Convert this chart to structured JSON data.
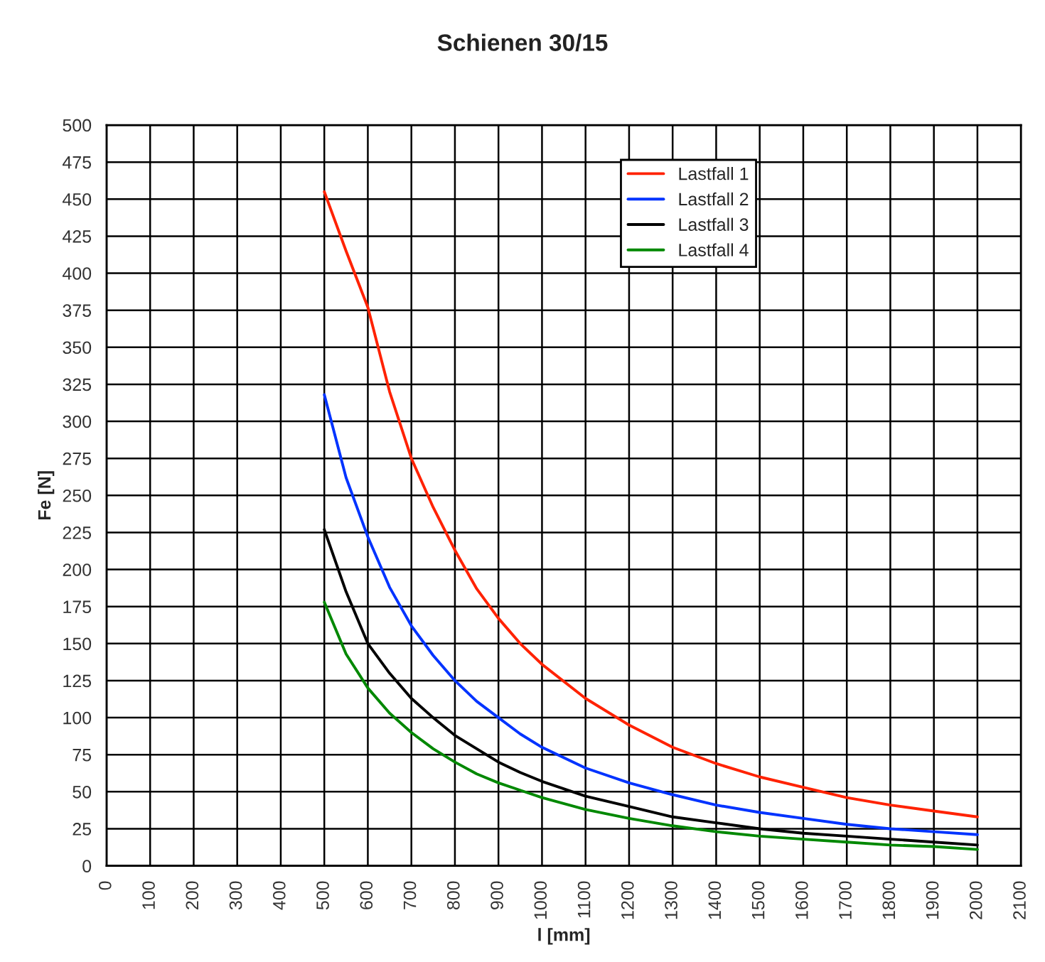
{
  "chart_data": {
    "type": "line",
    "title": "Schienen 30/15",
    "xlabel": "l [mm]",
    "ylabel": "Fe [N]",
    "x": [
      500,
      550,
      600,
      650,
      700,
      750,
      800,
      850,
      900,
      950,
      1000,
      1100,
      1200,
      1300,
      1400,
      1500,
      1600,
      1700,
      1800,
      1900,
      2000
    ],
    "series": [
      {
        "name": "Lastfall 1",
        "color": "#ff2200",
        "values": [
          455,
          415,
          377,
          320,
          275,
          242,
          213,
          187,
          167,
          150,
          136,
          113,
          95,
          80,
          69,
          60,
          53,
          46,
          41,
          37,
          33
        ]
      },
      {
        "name": "Lastfall 2",
        "color": "#0033ff",
        "values": [
          318,
          262,
          222,
          188,
          162,
          142,
          125,
          111,
          100,
          89,
          80,
          66,
          56,
          48,
          41,
          36,
          32,
          28,
          25,
          23,
          21
        ]
      },
      {
        "name": "Lastfall 3",
        "color": "#000000",
        "values": [
          227,
          185,
          150,
          130,
          113,
          100,
          88,
          79,
          70,
          63,
          57,
          47,
          40,
          33,
          29,
          25,
          22,
          20,
          18,
          16,
          14
        ]
      },
      {
        "name": "Lastfall 4",
        "color": "#008800",
        "values": [
          178,
          143,
          120,
          103,
          90,
          79,
          70,
          62,
          56,
          51,
          46,
          38,
          32,
          27,
          23,
          20,
          18,
          16,
          14,
          13,
          11
        ]
      }
    ],
    "xlim": [
      0,
      2100
    ],
    "xticks": [
      0,
      100,
      200,
      300,
      400,
      500,
      600,
      700,
      800,
      900,
      1000,
      1100,
      1200,
      1300,
      1400,
      1500,
      1600,
      1700,
      1800,
      1900,
      2000,
      2100
    ],
    "ylim": [
      0,
      500
    ],
    "yticks": [
      0,
      25,
      50,
      75,
      100,
      125,
      150,
      175,
      200,
      225,
      250,
      275,
      300,
      325,
      350,
      375,
      400,
      425,
      450,
      475,
      500
    ],
    "grid": true,
    "legend": "top right",
    "marker": "none",
    "line_style": "solid"
  }
}
